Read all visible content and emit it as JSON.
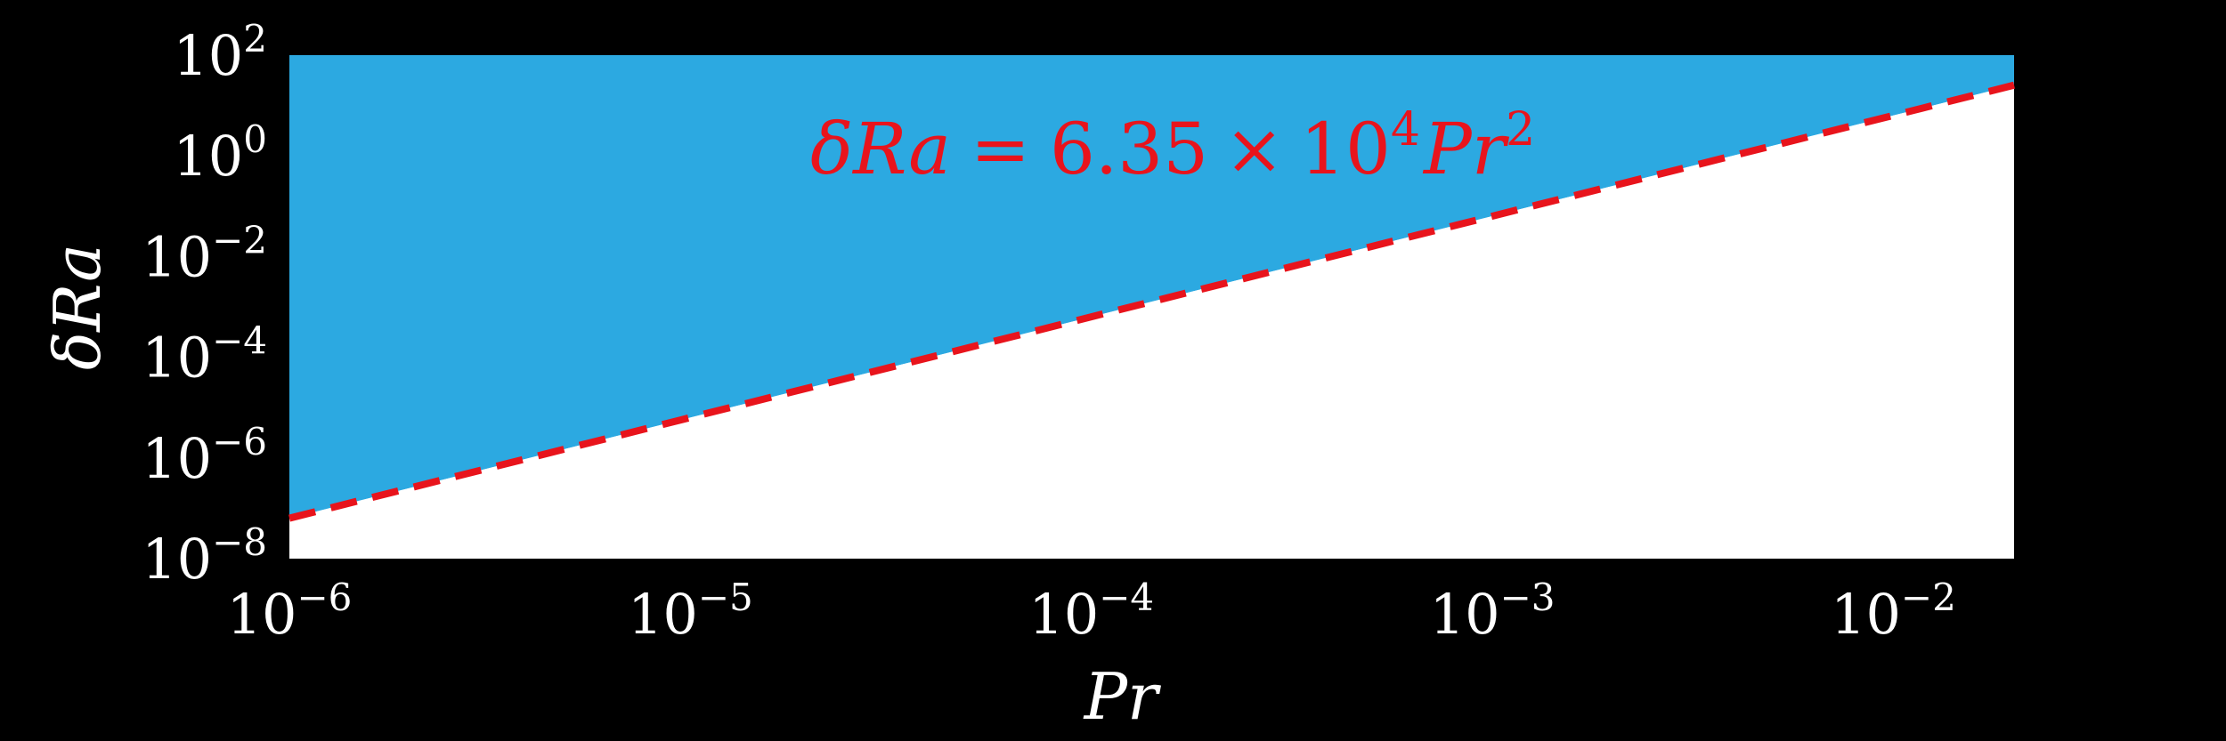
{
  "chart_data": {
    "type": "area",
    "title": "",
    "xlabel": "Pr",
    "ylabel": "δRa",
    "xscale": "log",
    "yscale": "log",
    "xlim": [
      1e-06,
      0.02
    ],
    "ylim": [
      1e-08,
      100
    ],
    "grid": false,
    "background_color": "#000000",
    "x_ticks": [
      {
        "value": 1e-06,
        "base": "10",
        "exp": "−6"
      },
      {
        "value": 1e-05,
        "base": "10",
        "exp": "−5"
      },
      {
        "value": 0.0001,
        "base": "10",
        "exp": "−4"
      },
      {
        "value": 0.001,
        "base": "10",
        "exp": "−3"
      },
      {
        "value": 0.01,
        "base": "10",
        "exp": "−2"
      }
    ],
    "y_ticks": [
      {
        "value": 1e-08,
        "base": "10",
        "exp": "−8"
      },
      {
        "value": 1e-06,
        "base": "10",
        "exp": "−6"
      },
      {
        "value": 0.0001,
        "base": "10",
        "exp": "−4"
      },
      {
        "value": 0.01,
        "base": "10",
        "exp": "−2"
      },
      {
        "value": 1,
        "base": "10",
        "exp": "0"
      },
      {
        "value": 100,
        "base": "10",
        "exp": "2"
      }
    ],
    "series": [
      {
        "kind": "filled-region-above-boundary",
        "color": "#2ca9e1",
        "x": [
          1e-06,
          0.02
        ],
        "y_lower": [
          6.35e-08,
          25.4
        ],
        "y_upper": [
          100,
          100
        ]
      },
      {
        "kind": "filled-region-below-boundary",
        "color": "#ffffff",
        "x": [
          1e-06,
          0.02
        ],
        "y_lower": [
          1e-08,
          1e-08
        ],
        "y_upper": [
          6.35e-08,
          25.4
        ]
      },
      {
        "kind": "dashed-line",
        "color": "#e8141c",
        "coefficient": 63500,
        "exponent": 2,
        "x": [
          1e-06,
          0.02
        ],
        "y": [
          6.35e-08,
          25.4
        ]
      }
    ],
    "annotation": {
      "delta": "δ",
      "Ra": "Ra",
      "eq": "=",
      "coef": "6.35",
      "times": "×",
      "ten": "10",
      "pow10": "4",
      "Pr": "Pr",
      "pow": "2",
      "color": "#e8141c"
    }
  }
}
